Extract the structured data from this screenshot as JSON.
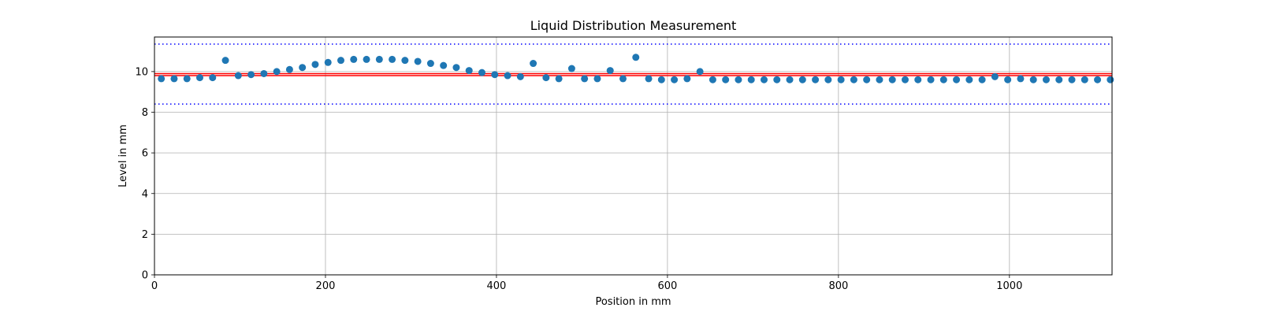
{
  "chart_data": {
    "type": "scatter",
    "title": "Liquid Distribution Measurement",
    "xlabel": "Position in mm",
    "ylabel": "Level in mm",
    "xlim": [
      0,
      1120
    ],
    "ylim": [
      0,
      11.7
    ],
    "x_ticks": [
      0,
      200,
      400,
      600,
      800,
      1000
    ],
    "y_ticks": [
      0,
      2,
      4,
      6,
      8,
      10
    ],
    "grid": true,
    "point_color": "#1f77b4",
    "series": [
      {
        "x": [
          8,
          23,
          38,
          53,
          68,
          83,
          98,
          113,
          128,
          143,
          158,
          173,
          188,
          203,
          218,
          233,
          248,
          263,
          278,
          293,
          308,
          323,
          338,
          353,
          368,
          383,
          398,
          413,
          428,
          443,
          458,
          473,
          488,
          503,
          518,
          533,
          548,
          563,
          578,
          593,
          608,
          623,
          638,
          653,
          668,
          683,
          698,
          713,
          728,
          743,
          758,
          773,
          788,
          803,
          818,
          833,
          848,
          863,
          878,
          893,
          908,
          923,
          938,
          953,
          968,
          983,
          998,
          1013,
          1028,
          1043,
          1058,
          1073,
          1088,
          1103,
          1118
        ],
        "y": [
          9.65,
          9.65,
          9.65,
          9.7,
          9.7,
          10.55,
          9.8,
          9.85,
          9.9,
          10.0,
          10.1,
          10.2,
          10.35,
          10.45,
          10.55,
          10.6,
          10.6,
          10.6,
          10.6,
          10.55,
          10.5,
          10.4,
          10.3,
          10.2,
          10.05,
          9.95,
          9.85,
          9.8,
          9.75,
          10.4,
          9.7,
          9.65,
          10.15,
          9.65,
          9.65,
          10.05,
          9.65,
          10.7,
          9.65,
          9.6,
          9.6,
          9.65,
          10.0,
          9.6,
          9.6,
          9.6,
          9.6,
          9.6,
          9.6,
          9.6,
          9.6,
          9.6,
          9.6,
          9.6,
          9.6,
          9.6,
          9.6,
          9.6,
          9.6,
          9.6,
          9.6,
          9.6,
          9.6,
          9.6,
          9.6,
          9.75,
          9.6,
          9.65,
          9.6,
          9.6,
          9.6,
          9.6,
          9.6,
          9.6,
          9.6
        ]
      }
    ],
    "reference_lines": [
      {
        "y": 9.9,
        "style": "solid",
        "color": "#ff0000"
      },
      {
        "y": 9.8,
        "style": "solid",
        "color": "#ff0000"
      },
      {
        "y": 11.35,
        "style": "dotted",
        "color": "#0000ff"
      },
      {
        "y": 8.4,
        "style": "dotted",
        "color": "#0000ff"
      }
    ]
  }
}
